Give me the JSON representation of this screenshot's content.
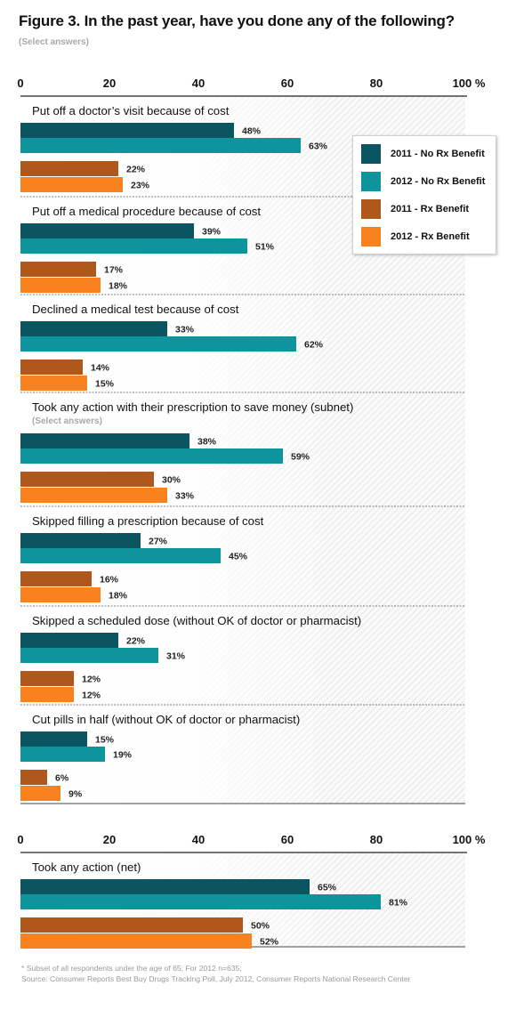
{
  "figure": {
    "title": "Figure 3. In the past year, have you done any of the following?",
    "subtitle": "(Select answers)"
  },
  "chart_data": {
    "type": "bar",
    "orientation": "horizontal",
    "xlim": [
      0,
      100
    ],
    "tick_labels": [
      "0",
      "20",
      "40",
      "60",
      "80",
      "100 %"
    ],
    "value_suffix": "%",
    "series": [
      {
        "name": "2011 - No Rx Benefit",
        "color": "#0a5560"
      },
      {
        "name": "2012 - No Rx Benefit",
        "color": "#0d949c"
      },
      {
        "name": "2011 - Rx Benefit",
        "color": "#b0581c"
      },
      {
        "name": "2012 - Rx Benefit",
        "color": "#f7821f"
      }
    ],
    "groups": [
      {
        "label": "Put off a doctor’s visit because of cost",
        "values": [
          48,
          63,
          22,
          23
        ]
      },
      {
        "label": "Put off a medical procedure because of cost",
        "values": [
          39,
          51,
          17,
          18
        ]
      },
      {
        "label": "Declined a medical test because of cost",
        "values": [
          33,
          62,
          14,
          15
        ]
      },
      {
        "label": "Took any action with their prescription to save money (subnet)",
        "sublabel": "(Select answers)",
        "values": [
          38,
          59,
          30,
          33
        ]
      },
      {
        "label": "Skipped filling a prescription because of cost",
        "values": [
          27,
          45,
          16,
          18
        ]
      },
      {
        "label": "Skipped a scheduled dose (without OK of doctor or pharmacist)",
        "values": [
          22,
          31,
          12,
          12
        ]
      },
      {
        "label": "Cut pills in half (without OK of doctor or pharmacist)",
        "values": [
          15,
          19,
          6,
          9
        ]
      },
      {
        "label": "Took any action (net)",
        "values": [
          65,
          81,
          50,
          52
        ]
      }
    ]
  },
  "footnote": {
    "line1": "* Subset of all respondents under the age of 65; For 2012 n=635;",
    "line2": "Source: Consumer Reports Best Buy Drugs Tracking Poll, July 2012, Consumer Reports National Research Center"
  }
}
